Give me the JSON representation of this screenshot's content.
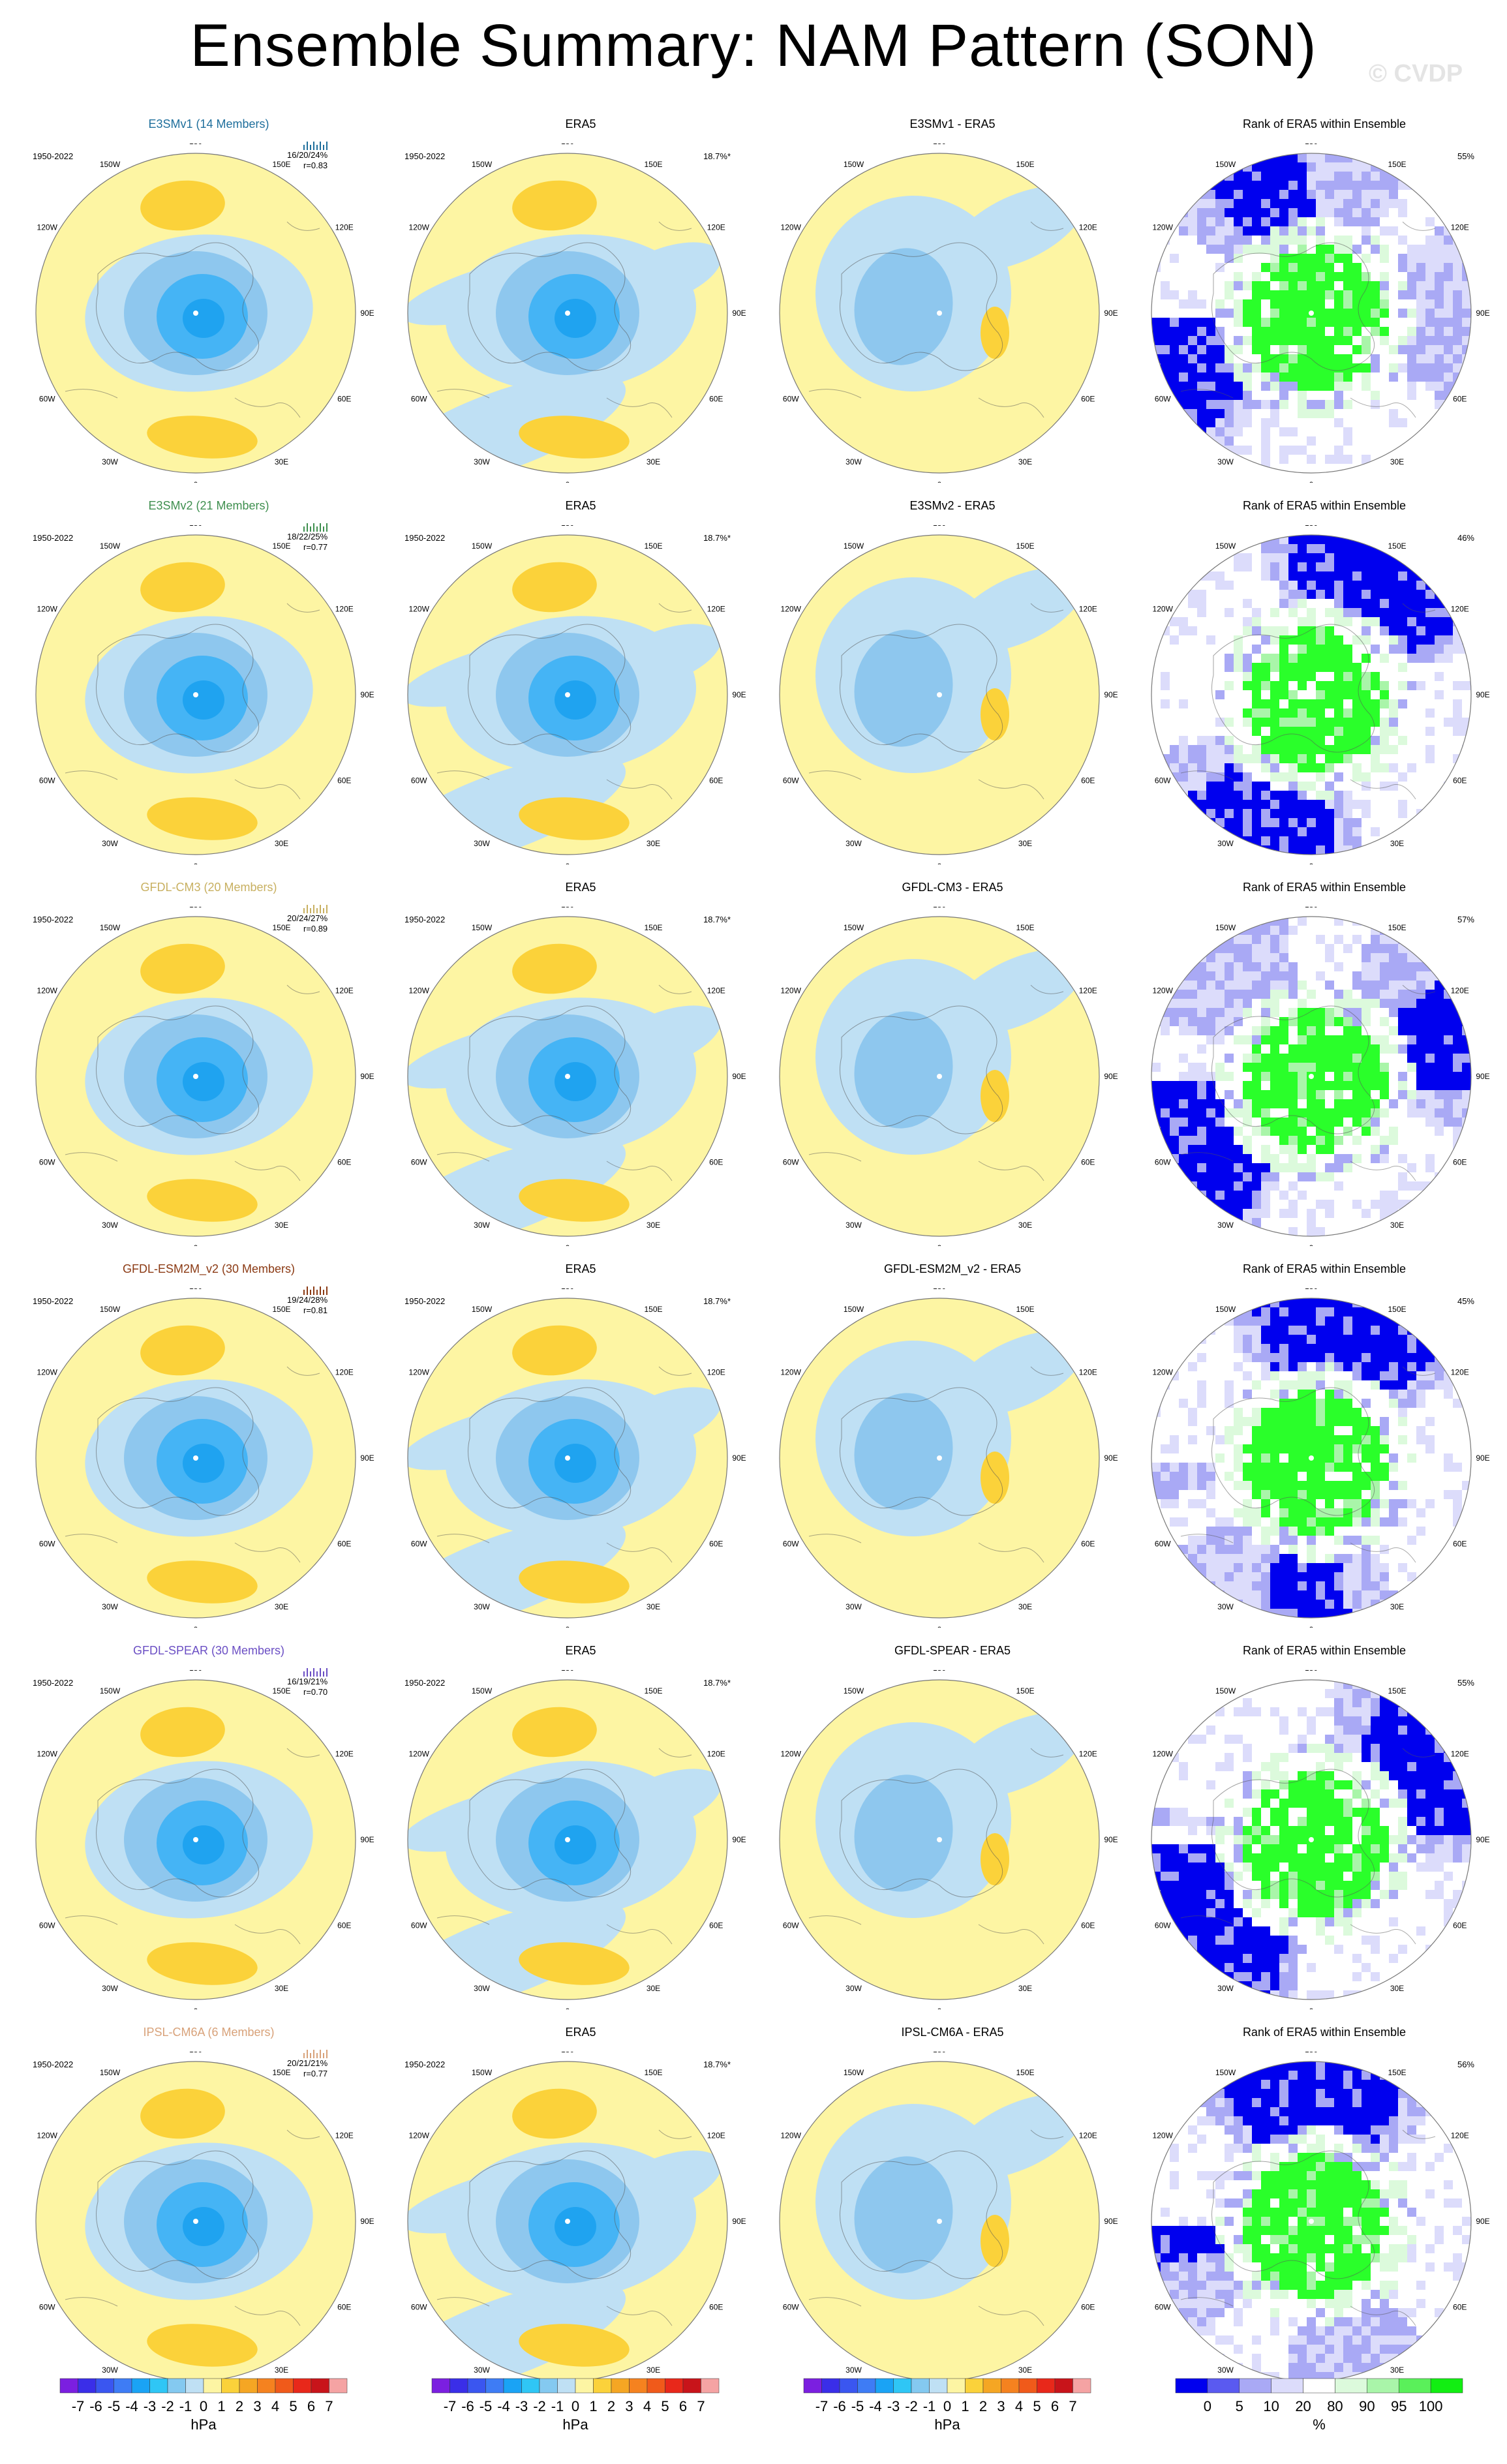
{
  "title": "Ensemble Summary: NAM Pattern (SON)",
  "watermark": "© CVDP",
  "colors": {
    "positive_light": "#fdf5a3",
    "positive_mid": "#fbd23a",
    "positive_dark": "#f5a623",
    "negative_light": "#bfe0f4",
    "negative_mid": "#8ec7ee",
    "negative_dark": "#45b4f5",
    "negative_core": "#1fa3f0",
    "rank_low": "#0000ee",
    "rank_mid": "#a9a9f5",
    "rank_high": "#2aff2a"
  },
  "chart_data": {
    "type": "heatmap",
    "rows": [
      {
        "model": "E3SMv1 (14 Members)",
        "model_color": "#1f6f9c",
        "period": "1950-2022",
        "stats": "16/20/24%",
        "r": "r=0.83",
        "era5_pct": "18.7%*",
        "diff_title": "E3SMv1 - ERA5",
        "rank_pct": "55%"
      },
      {
        "model": "E3SMv2 (21 Members)",
        "model_color": "#3f8f4f",
        "period": "1950-2022",
        "stats": "18/22/25%",
        "r": "r=0.77",
        "era5_pct": "18.7%*",
        "diff_title": "E3SMv2 - ERA5",
        "rank_pct": "46%"
      },
      {
        "model": "GFDL-CM3 (20 Members)",
        "model_color": "#c8b061",
        "period": "1950-2022",
        "stats": "20/24/27%",
        "r": "r=0.89",
        "era5_pct": "18.7%*",
        "diff_title": "GFDL-CM3 - ERA5",
        "rank_pct": "57%"
      },
      {
        "model": "GFDL-ESM2M_v2 (30 Members)",
        "model_color": "#8b3a14",
        "period": "1950-2022",
        "stats": "19/24/28%",
        "r": "r=0.81",
        "era5_pct": "18.7%*",
        "diff_title": "GFDL-ESM2M_v2 - ERA5",
        "rank_pct": "45%"
      },
      {
        "model": "GFDL-SPEAR (30 Members)",
        "model_color": "#6b4fc4",
        "period": "1950-2022",
        "stats": "16/19/21%",
        "r": "r=0.70",
        "era5_pct": "18.7%*",
        "diff_title": "GFDL-SPEAR - ERA5",
        "rank_pct": "55%"
      },
      {
        "model": "IPSL-CM6A (6 Members)",
        "model_color": "#d8a27a",
        "period": "1950-2022",
        "stats": "20/21/21%",
        "r": "r=0.77",
        "era5_pct": "18.7%*",
        "diff_title": "IPSL-CM6A - ERA5",
        "rank_pct": "56%"
      }
    ],
    "era5_title": "ERA5",
    "rank_title": "Rank of ERA5 within Ensemble",
    "lon_labels": [
      "180",
      "150E",
      "120E",
      "90E",
      "60E",
      "30E",
      "0",
      "30W",
      "60W",
      "90W",
      "120W",
      "150W"
    ],
    "hpa_colorbar": {
      "ticks": [
        "-7",
        "-6",
        "-5",
        "-4",
        "-3",
        "-2",
        "-1",
        "0",
        "1",
        "2",
        "3",
        "4",
        "5",
        "6",
        "7"
      ],
      "colors": [
        "#7b1fe0",
        "#3a2ee8",
        "#3a56f0",
        "#3e7cf5",
        "#1aa3f5",
        "#2fc6f5",
        "#84c9f0",
        "#bfe0f4",
        "#fdf5a3",
        "#fbd23a",
        "#f5a623",
        "#f5821f",
        "#f05a1a",
        "#e8281a",
        "#c8141a",
        "#f5a3a3"
      ],
      "unit": "hPa"
    },
    "rank_colorbar": {
      "ticks": [
        "0",
        "5",
        "10",
        "20",
        "80",
        "90",
        "95",
        "100"
      ],
      "colors": [
        "#0000ee",
        "#5a5af0",
        "#a9a9f5",
        "#dcdcfb",
        "#ffffff",
        "#dcfadc",
        "#a9f5a9",
        "#5af05a",
        "#12ee12"
      ],
      "unit": "%"
    }
  }
}
